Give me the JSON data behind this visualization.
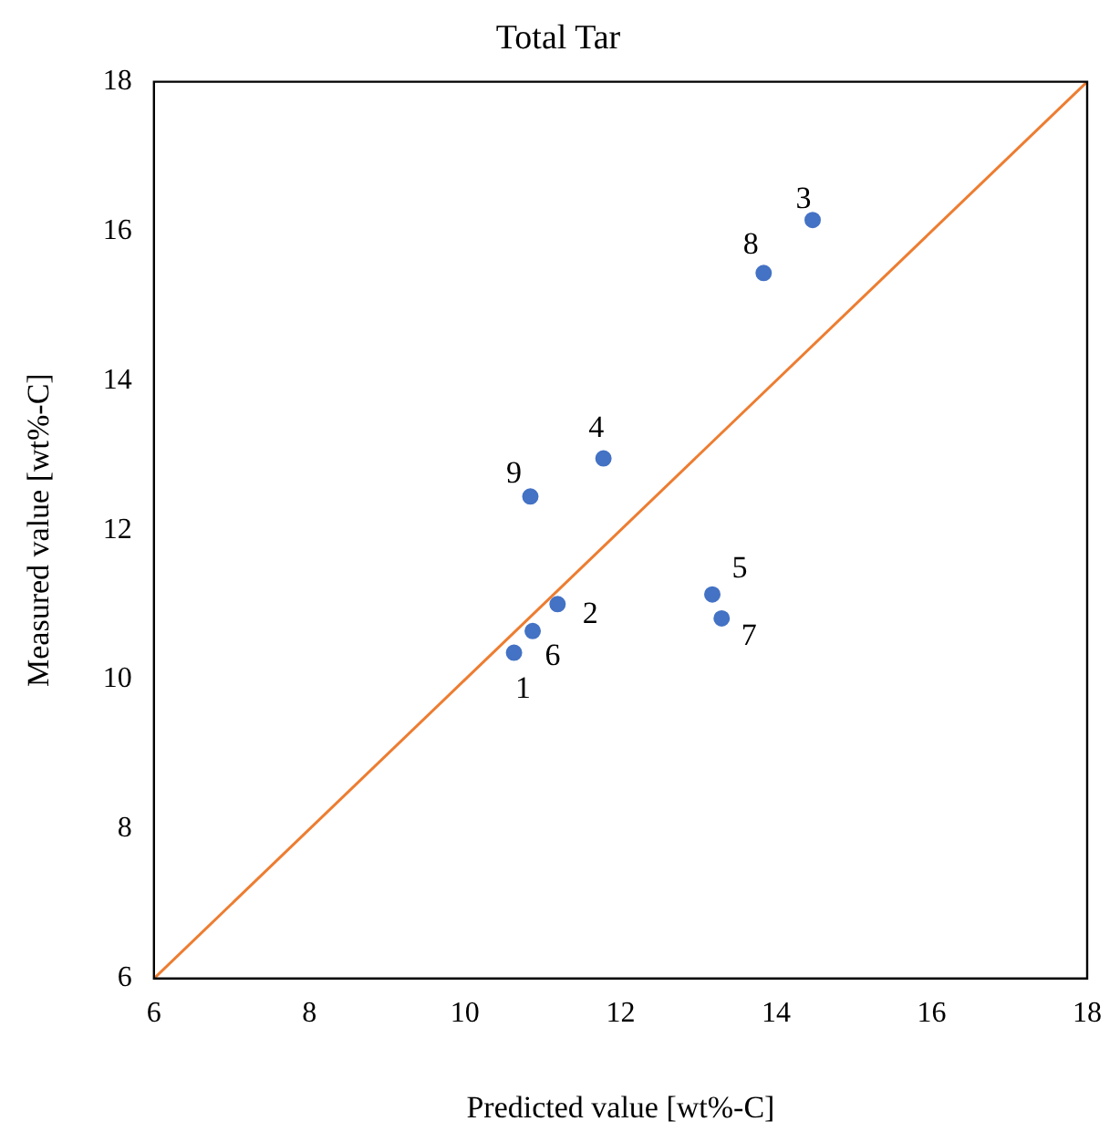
{
  "chart_data": {
    "type": "scatter",
    "title": "Total Tar",
    "xlabel": "Predicted value [wt%-C]",
    "ylabel": "Measured value [wt%-C]",
    "xlim": [
      6,
      18
    ],
    "xticks": [
      6,
      8,
      10,
      12,
      14,
      16,
      18
    ],
    "ylim": [
      6,
      18
    ],
    "yticks": [
      6,
      8,
      10,
      12,
      14,
      16,
      18
    ],
    "grid": false,
    "legend": false,
    "marker": "circle",
    "series": [
      {
        "color": "#4472c4",
        "x": [
          10.63,
          11.19,
          14.47,
          11.78,
          13.18,
          10.87,
          13.3,
          13.84,
          10.84
        ],
        "values": [
          10.36,
          11.01,
          16.15,
          12.96,
          11.14,
          10.65,
          10.82,
          15.44,
          12.45
        ]
      },
      {
        "type": "line",
        "color": "#ed7d31",
        "marker": "none",
        "x": [
          6,
          18
        ],
        "values": [
          6,
          18
        ]
      }
    ],
    "annotations": [
      {
        "text": "1",
        "x": 10.63,
        "y": 10.36
      },
      {
        "text": "2",
        "x": 11.19,
        "y": 11.01
      },
      {
        "text": "3",
        "x": 14.47,
        "y": 16.15
      },
      {
        "text": "4",
        "x": 11.78,
        "y": 12.96
      },
      {
        "text": "5",
        "x": 13.18,
        "y": 11.14
      },
      {
        "text": "6",
        "x": 10.87,
        "y": 10.65
      },
      {
        "text": "7",
        "x": 13.3,
        "y": 10.82
      },
      {
        "text": "8",
        "x": 13.84,
        "y": 15.44
      },
      {
        "text": "9",
        "x": 10.84,
        "y": 12.45
      }
    ]
  }
}
